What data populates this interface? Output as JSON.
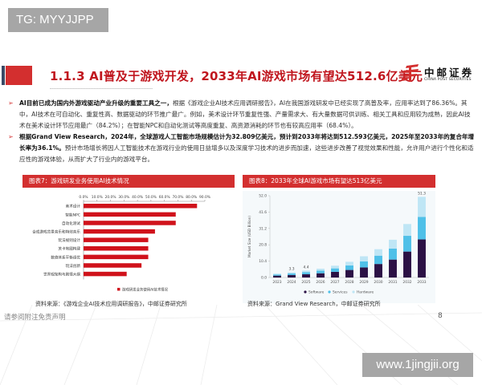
{
  "watermarks": {
    "top": "TG: MYYJJPP",
    "bottom": "www.1jingjii.org"
  },
  "header": {
    "title": "1.1.3 AI普及于游戏开发，2033年AI游戏市场有望达512.6亿美元",
    "logo_cn": "中邮证券",
    "logo_en": "CHINA POST SECURITIES",
    "colors": {
      "accent_red": "#d32f2f",
      "title_red": "#c0161e",
      "marker_dark": "#3a4a66"
    }
  },
  "bullets": [
    {
      "bold_lead": "AI目前已成为国内外游戏驱动产业升级的重要工具之一，",
      "text": "根据《游戏企业AI技术应用调研报告》，AI在我国游戏研发中已经实现了高普及率，应用率达到了86.36%。其中，AI技术在可自动化、重复性高、数据驱动的环节推广最广。例如，美术设计环节重复性强、产量需求大、有大量数据可供训练、相关工具和应用较为成熟，因此AI技术在美术设计环节应用最广（84.2%）；在智能NPC和自动化测试等高度重复、高资源消耗的环节也有较高应用率（68.4%）。"
    },
    {
      "bold_lead": "根据Grand View Research，2024年，全球游戏人工智能市场规模估计为32.809亿美元，预计到2033年将达到512.593亿美元，2025年至2033年的复合年增长率为36.1%。",
      "text": "预计市场增长将因人工智能技术在游戏行业的使用日益增多以及深度学习技术的进步而加速，这些进步改善了视觉效果和性能，允许用户进行个性化和适应性的游戏体验，从而扩大了行业内的游戏平台。"
    }
  ],
  "chart7": {
    "header": "图表7：游戏研发业务使用AI技术情况",
    "legend": "游戏研发业务使用AI技术情况",
    "source": "资料来源：《游戏企业AI技术应用调研报告》，中邮证券研究所"
  },
  "chart8": {
    "header": "图表8：2033年全球AI游戏市场有望达513亿美元",
    "source": "资料来源：Grand View Research，中邮证券研究所"
  },
  "footer": {
    "disclaimer": "请参阅附注免责声明",
    "page_number": "8"
  },
  "chart_data": [
    {
      "type": "bar",
      "orientation": "horizontal",
      "title": "图表7：游戏研发业务使用AI技术情况",
      "categories": [
        "美术设计",
        "智能NPC",
        "自动化测试",
        "合成游戏背景音乐和特效音乐",
        "玩法规则设计",
        "关卡地图构建",
        "数值体系平衡调优",
        "玩法创新",
        "世界观架构与剧情大纲"
      ],
      "values": [
        84.2,
        68.4,
        68.4,
        53.0,
        48.0,
        48.0,
        48.0,
        43.0,
        32.0
      ],
      "unit": "%",
      "xlim": [
        0,
        90
      ],
      "xticks": [
        "0.0%",
        "10.0%",
        "20.0%",
        "30.0%",
        "40.0%",
        "50.0%",
        "60.0%",
        "70.0%",
        "80.0%",
        "90.0%"
      ],
      "legend": [
        "游戏研发业务使用AI技术情况"
      ],
      "legend_position": "bottom",
      "color": "#d0121b",
      "grid": false
    },
    {
      "type": "bar",
      "stacked": true,
      "title": "图表8：2033年全球AI游戏市场有望达513亿美元",
      "ylabel": "Market Size (USD Billion)",
      "categories": [
        "2023",
        "2024",
        "2025",
        "2026",
        "2027",
        "2028",
        "2029",
        "2030",
        "2031",
        "2032",
        "2033"
      ],
      "series": [
        {
          "name": "Software",
          "color": "#2b1145",
          "values": [
            1.2,
            1.6,
            2.1,
            2.7,
            3.6,
            4.8,
            6.4,
            8.6,
            11.4,
            16.5,
            24.2
          ]
        },
        {
          "name": "Services",
          "color": "#4fc0e8",
          "values": [
            0.7,
            1.0,
            1.3,
            1.7,
            2.2,
            2.9,
            3.9,
            5.3,
            7.0,
            10.0,
            14.3
          ]
        },
        {
          "name": "Hardware",
          "color": "#bfe6f5",
          "values": [
            0.6,
            0.7,
            1.0,
            1.2,
            1.7,
            2.3,
            3.2,
            4.1,
            5.6,
            7.5,
            12.8
          ]
        }
      ],
      "totals_labeled": {
        "2024": 3.3,
        "2025": 4.4,
        "2033": 51.3
      },
      "ylim": [
        0,
        52.0
      ],
      "yticks": [
        "0.0",
        "10.4",
        "20.8",
        "31.2",
        "41.6",
        "52.0"
      ],
      "legend": [
        "Software",
        "Services",
        "Hardware"
      ],
      "legend_position": "bottom",
      "grid": false
    }
  ]
}
